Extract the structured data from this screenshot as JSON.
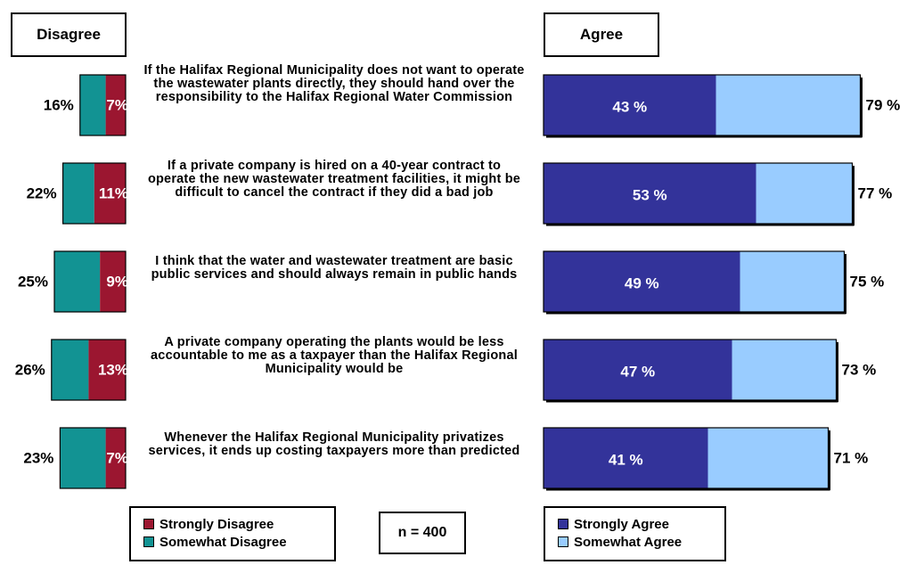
{
  "headers": {
    "disagree": "Disagree",
    "agree": "Agree"
  },
  "sample": "n = 400",
  "legend_disagree": [
    {
      "label": "Strongly Disagree",
      "color": "#9b1630"
    },
    {
      "label": "Somewhat Disagree",
      "color": "#129393"
    }
  ],
  "legend_agree": [
    {
      "label": "Strongly Agree",
      "color": "#33339a"
    },
    {
      "label": "Somewhat Agree",
      "color": "#99ccff"
    }
  ],
  "chart_data": {
    "type": "bar",
    "orientation": "horizontal",
    "stacked": true,
    "categories": [
      "If the Halifax Regional Municipality does not want to operate the wastewater plants directly, they should hand over the responsibility to the Halifax Regional Water Commission",
      "If a private company is hired on a 40-year contract to operate the new wastewater treatment facilities, it might be difficult to cancel the contract if they did a bad job",
      "I think that the water and wastewater treatment are basic public services and should always remain in public hands",
      "A private company operating the plants would be less accountable to me as a taxpayer than the Halifax Regional Municipality would be",
      "Whenever the Halifax Regional Municipality privatizes services, it ends up costing taxpayers more than predicted"
    ],
    "disagree_total": [
      16,
      22,
      25,
      26,
      23
    ],
    "strongly_disagree": [
      7,
      11,
      9,
      13,
      7
    ],
    "agree_total": [
      79,
      77,
      75,
      73,
      71
    ],
    "strongly_agree": [
      43,
      53,
      49,
      47,
      41
    ],
    "series": [
      {
        "name": "Strongly Disagree",
        "color": "#9b1630"
      },
      {
        "name": "Somewhat Disagree",
        "color": "#129393"
      },
      {
        "name": "Strongly Agree",
        "color": "#33339a"
      },
      {
        "name": "Somewhat Agree",
        "color": "#99ccff"
      }
    ],
    "unit": "%"
  }
}
